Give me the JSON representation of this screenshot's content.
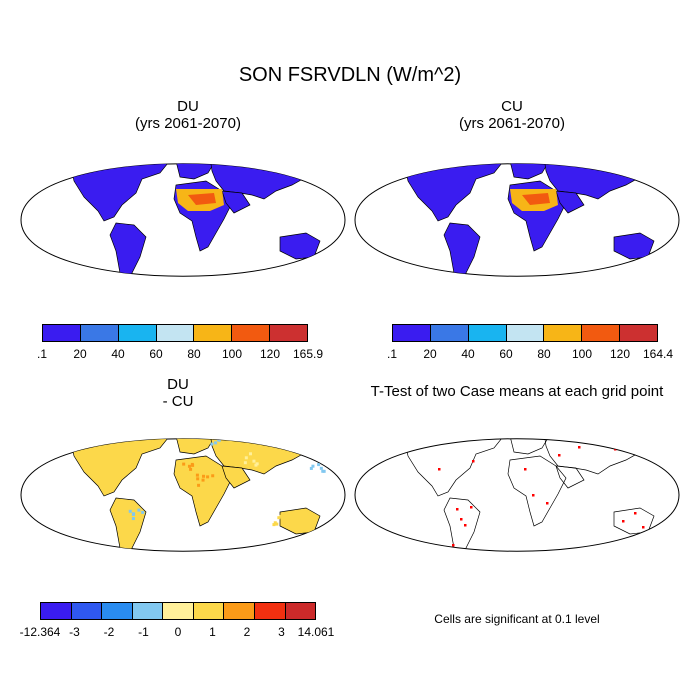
{
  "title": "SON FSRVDLN (W/m^2)",
  "panels": [
    {
      "id": "du",
      "title": "DU",
      "subtitle": "(yrs 2061-2070)",
      "colorbar": {
        "colors": [
          "#3a1cf0",
          "#3a78e6",
          "#19b4f0",
          "#c3e4f2",
          "#f7b517",
          "#f25a10",
          "#cc3030"
        ],
        "labels": [
          ".1",
          "20",
          "40",
          "60",
          "80",
          "100",
          "120",
          "165.9"
        ]
      }
    },
    {
      "id": "cu",
      "title": "CU",
      "subtitle": "(yrs 2061-2070)",
      "colorbar": {
        "colors": [
          "#3a1cf0",
          "#3a78e6",
          "#19b4f0",
          "#c3e4f2",
          "#f7b517",
          "#f25a10",
          "#cc3030"
        ],
        "labels": [
          ".1",
          "20",
          "40",
          "60",
          "80",
          "100",
          "120",
          "164.4"
        ]
      }
    },
    {
      "id": "diff",
      "title": "DU",
      "subtitle": "- CU",
      "colorbar": {
        "colors": [
          "#3a1cf0",
          "#2f58f0",
          "#2a8cf0",
          "#82c8f0",
          "#fff09a",
          "#fcd84a",
          "#fb9b18",
          "#f23010",
          "#cc2a2a"
        ],
        "labels": [
          "-12.364",
          "-3",
          "-2",
          "-1",
          "0",
          "1",
          "2",
          "3",
          "14.061"
        ]
      }
    },
    {
      "id": "ttest",
      "title": "T-Test of two Case means at each grid point",
      "note": "Cells are significant at 0.1 level"
    }
  ],
  "legend_colors": {
    "ocean": "#ffffff",
    "land_outline": "#000000",
    "significant": "#ff0000"
  }
}
